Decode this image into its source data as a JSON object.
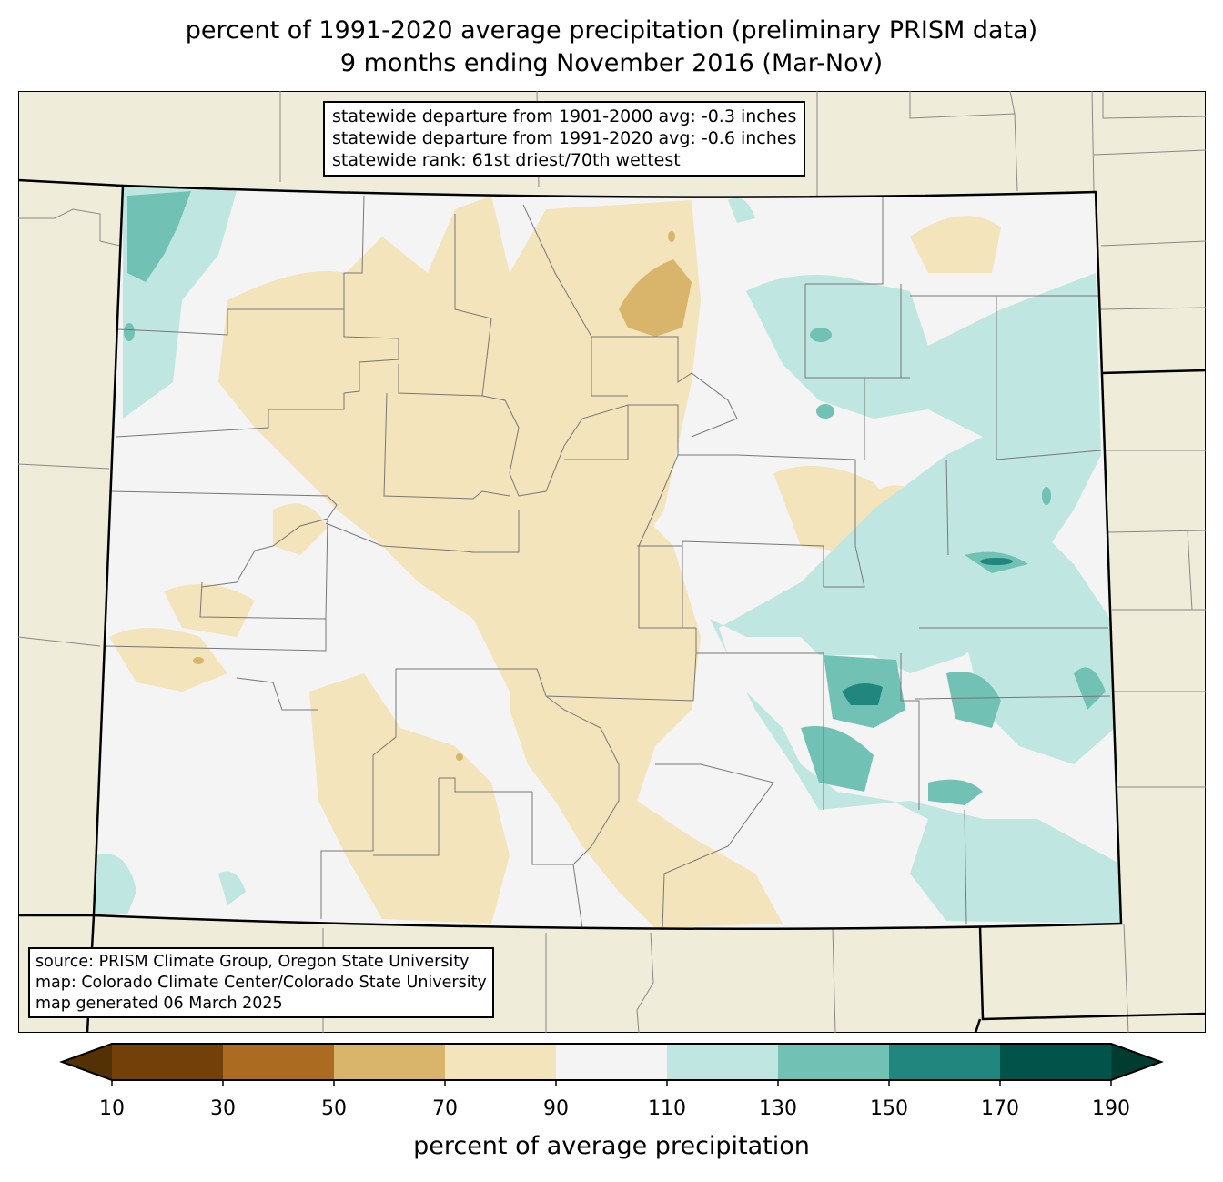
{
  "title": {
    "line1": "percent of 1991-2020 average precipitation (preliminary PRISM data)",
    "line2": "9 months ending November 2016 (Mar-Nov)"
  },
  "stats_box": {
    "line1": "statewide departure from 1901-2000 avg: -0.3 inches",
    "line2": "statewide departure from 1991-2020 avg: -0.6 inches",
    "line3": "statewide rank: 61st driest/70th wettest"
  },
  "source_box": {
    "line1": "source: PRISM Climate Group, Oregon State University",
    "line2": "map: Colorado Climate Center/Colorado State University",
    "line3": "map generated 06 March 2025"
  },
  "colorbar": {
    "title": "percent of average precipitation",
    "ticks": [
      "10",
      "30",
      "50",
      "70",
      "90",
      "110",
      "130",
      "150",
      "170",
      "190"
    ],
    "colors": [
      "#744009",
      "#ab6c21",
      "#d9b46b",
      "#f3e4bc",
      "#f3f4f3",
      "#bfe6e1",
      "#71c1b5",
      "#21867d",
      "#02544a"
    ],
    "extend_low_color": "#543005",
    "extend_high_color": "#003c30"
  },
  "colors": {
    "background_land": "#efedd9",
    "state_fill": "#f3f4f3"
  }
}
